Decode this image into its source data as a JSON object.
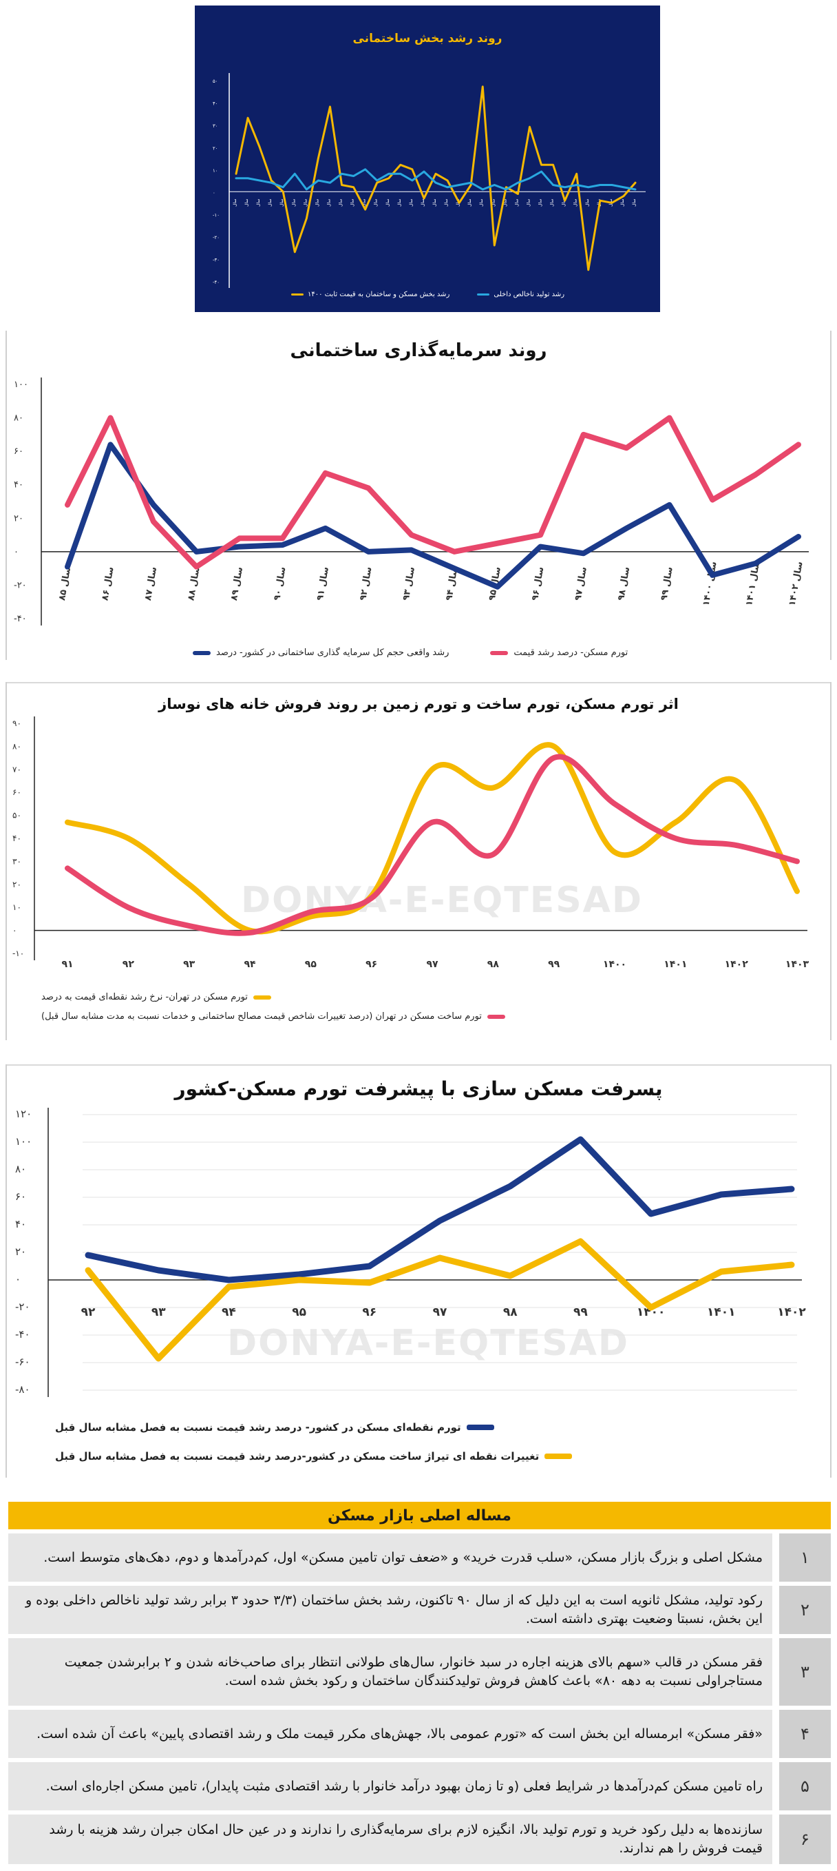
{
  "charts_meta": {
    "c1_title": "روند رشد بخش ساختمانی",
    "c1_legend_a": "رشد بخش مسکن و ساختمان به قیمت ثابت ۱۴۰۰",
    "c1_legend_b": "رشد تولید ناخالص داخلی",
    "c2_title": "روند سرمایه‌گذاری ساختمانی",
    "c2_legend_a": "رشد واقعی حجم کل سرمایه گذاری ساختمانی در کشور- درصد",
    "c2_legend_b": "تورم مسکن- درصد رشد قیمت",
    "c3_title": "اثر تورم مسکن، تورم ساخت و تورم زمین بر روند فروش خانه های نوساز",
    "c3_legend_a": "تورم مسکن در تهران- نرخ رشد نقطه‌ای قیمت به درصد",
    "c3_legend_b": "تورم ساخت مسکن در تهران (درصد تغییرات شاخص قیمت مصالح ساختمانی و خدمات نسبت به مدت مشابه سال قبل)",
    "c3_watermark": "DONYA-E-EQTESAD",
    "c4_title": "پسرفت مسکن سازی با پیشرفت تورم مسکن-کشور",
    "c4_legend_a": "تورم نقطه‌ای مسکن در کشور- درصد رشد قیمت نسبت به فصل مشابه سال قبل",
    "c4_legend_b": "تغییرات نقطه ای تیراژ ساخت مسکن در کشور-درصد رشد قیمت نسبت به فصل مشابه سال قبل",
    "c4_watermark": "DONYA-E-EQTESAD"
  },
  "chart_data": [
    {
      "type": "line",
      "title": "روند رشد بخش ساختمانی",
      "ylim": [
        -40,
        50
      ],
      "yticks": [
        "۵۰",
        "۴۰",
        "۳۰",
        "۲۰",
        "۱۰",
        "۰",
        "-۱۰",
        "-۲۰",
        "-۳۰",
        "-۴۰"
      ],
      "ytick_values": [
        50,
        40,
        30,
        20,
        10,
        0,
        -10,
        -20,
        -30,
        -40
      ],
      "categories_count": 35,
      "series": [
        {
          "name": "رشد بخش مسکن و ساختمان به قیمت ثابت ۱۴۰۰",
          "color": "#f5b800",
          "values": [
            8,
            33,
            20,
            5,
            0,
            -27,
            -12,
            15,
            38,
            3,
            2,
            -8,
            4,
            6,
            12,
            10,
            -3,
            8,
            5,
            -5,
            3,
            47,
            -24,
            2,
            -1,
            29,
            12,
            12,
            -4,
            8,
            -35,
            -4,
            -5,
            -2,
            4
          ]
        },
        {
          "name": "رشد تولید ناخالص داخلی",
          "color": "#29a8e0",
          "values": [
            6,
            6,
            5,
            4,
            2,
            8,
            1,
            5,
            4,
            8,
            7,
            10,
            5,
            8,
            8,
            5,
            9,
            4,
            2,
            3,
            4,
            1,
            3,
            1,
            4,
            6,
            9,
            3,
            2,
            3,
            2,
            3,
            3,
            2,
            1
          ]
        }
      ]
    },
    {
      "type": "line",
      "title": "روند سرمایه‌گذاری ساختمانی",
      "ylim": [
        -40,
        100
      ],
      "yticks": [
        "۱۰۰",
        "۸۰",
        "۶۰",
        "۴۰",
        "۲۰",
        "۰",
        "-۲۰",
        "-۴۰"
      ],
      "ytick_values": [
        100,
        80,
        60,
        40,
        20,
        0,
        -20,
        -40
      ],
      "categories": [
        "سال ۸۵",
        "سال ۸۶",
        "سال ۸۷",
        "سال ۸۸",
        "سال ۸۹",
        "سال ۹۰",
        "سال ۹۱",
        "سال ۹۲",
        "سال ۹۳",
        "سال ۹۴",
        "سال ۹۵",
        "سال ۹۶",
        "سال ۹۷",
        "سال ۹۸",
        "سال ۹۹",
        "سال ۱۴۰۰",
        "سال ۱۴۰۱",
        "سال ۱۴۰۲"
      ],
      "series": [
        {
          "name": "رشد واقعی حجم کل سرمایه گذاری ساختمانی در کشور- درصد",
          "color": "#1b3a8a",
          "values": [
            -9,
            64,
            28,
            0,
            3,
            4,
            14,
            0,
            1,
            -10,
            -21,
            3,
            -1,
            14,
            28,
            -14,
            -7,
            9
          ]
        },
        {
          "name": "تورم مسکن- درصد رشد قیمت",
          "color": "#e8476b",
          "values": [
            28,
            80,
            18,
            -9,
            8,
            8,
            47,
            38,
            10,
            0,
            5,
            10,
            70,
            62,
            80,
            31,
            46,
            64
          ]
        }
      ]
    },
    {
      "type": "line",
      "title": "اثر تورم مسکن، تورم ساخت و تورم زمین بر روند فروش خانه های نوساز",
      "ylim": [
        -10,
        90
      ],
      "yticks": [
        "۹۰",
        "۸۰",
        "۷۰",
        "۶۰",
        "۵۰",
        "۴۰",
        "۳۰",
        "۲۰",
        "۱۰",
        "۰",
        "-۱۰"
      ],
      "ytick_values": [
        90,
        80,
        70,
        60,
        50,
        40,
        30,
        20,
        10,
        0,
        -10
      ],
      "categories": [
        "۹۱",
        "۹۲",
        "۹۳",
        "۹۴",
        "۹۵",
        "۹۶",
        "۹۷",
        "۹۸",
        "۹۹",
        "۱۴۰۰",
        "۱۴۰۱",
        "۱۴۰۲",
        "۱۴۰۳"
      ],
      "series": [
        {
          "name": "تورم مسکن در تهران- نرخ رشد نقطه‌ای قیمت به درصد",
          "color": "#f5b800",
          "values": [
            47,
            40,
            20,
            0,
            6,
            15,
            70,
            62,
            80,
            34,
            47,
            65,
            17
          ]
        },
        {
          "name": "تورم ساخت مسکن در تهران (درصد تغییرات شاخص قیمت مصالح ساختمانی و خدمات نسبت به مدت مشابه سال قبل)",
          "color": "#e8476b",
          "values": [
            27,
            10,
            2,
            -1,
            8,
            14,
            47,
            33,
            75,
            55,
            40,
            37,
            30
          ]
        }
      ]
    },
    {
      "type": "line",
      "title": "پسرفت مسکن سازی با پیشرفت تورم مسکن-کشور",
      "ylim": [
        -80,
        120
      ],
      "yticks": [
        "۱۲۰",
        "۱۰۰",
        "۸۰",
        "۶۰",
        "۴۰",
        "۲۰",
        "۰",
        "-۲۰",
        "-۴۰",
        "-۶۰",
        "-۸۰"
      ],
      "ytick_values": [
        120,
        100,
        80,
        60,
        40,
        20,
        0,
        -20,
        -40,
        -60,
        -80
      ],
      "categories": [
        "۹۲",
        "۹۳",
        "۹۴",
        "۹۵",
        "۹۶",
        "۹۷",
        "۹۸",
        "۹۹",
        "۱۴۰۰",
        "۱۴۰۱",
        "۱۴۰۲"
      ],
      "series": [
        {
          "name": "تورم نقطه‌ای مسکن در کشور- درصد رشد قیمت نسبت به فصل مشابه سال قبل",
          "color": "#1b3a8a",
          "values": [
            18,
            7,
            0,
            4,
            10,
            43,
            68,
            102,
            48,
            62,
            66
          ]
        },
        {
          "name": "تغییرات نقطه ای تیراژ ساخت مسکن در کشور-درصد رشد قیمت نسبت به فصل مشابه سال قبل",
          "color": "#f5b800",
          "values": [
            7,
            -57,
            -5,
            0,
            -2,
            16,
            3,
            28,
            -20,
            6,
            11
          ]
        }
      ]
    }
  ],
  "table": {
    "title": "مساله اصلی بازار مسکن",
    "rows": [
      {
        "num": "۱",
        "text": "مشکل اصلی و بزرگ بازار مسکن، «سلب قدرت خرید» و «ضعف توان تامین مسکن» اول، کم‌درآمدها و دوم، دهک‌های متوسط است."
      },
      {
        "num": "۲",
        "text": "رکود تولید، مشکل ثانویه است به این دلیل که از سال ۹۰ تاکنون، رشد بخش ساختمان (۳/۳ حدود ۳ برابر رشد تولید ناخالص داخلی بوده و این بخش، نسبتا وضعیت بهتری داشته است."
      },
      {
        "num": "۳",
        "text": "فقر مسکن در قالب «سهم بالای هزینه اجاره در سبد خانوار، سال‌های طولانی انتظار برای صاحب‌خانه شدن و ۲ برابرشدن جمعیت مستاجراولی نسبت به دهه ۸۰» باعث کاهش فروش تولیدکنندگان ساختمان و رکود بخش شده است."
      },
      {
        "num": "۴",
        "text": "«فقر مسکن» ابرمساله این بخش است که «تورم عمومی بالا، جهش‌های مکرر قیمت ملک و رشد اقتصادی پایین» باعث آن شده است."
      },
      {
        "num": "۵",
        "text": "راه تامین مسکن کم‌درآمدها در شرایط فعلی (و تا زمان بهبود درآمد خانوار با رشد اقتصادی مثبت پایدار)، تامین مسکن اجاره‌ای است."
      },
      {
        "num": "۶",
        "text": "سازنده‌ها به دلیل رکود خرید و تورم تولید بالا، انگیزه لازم برای سرمایه‌گذاری را ندارند و در عین حال امکان جبران رشد هزینه با رشد قیمت فروش را هم ندارند."
      }
    ]
  }
}
